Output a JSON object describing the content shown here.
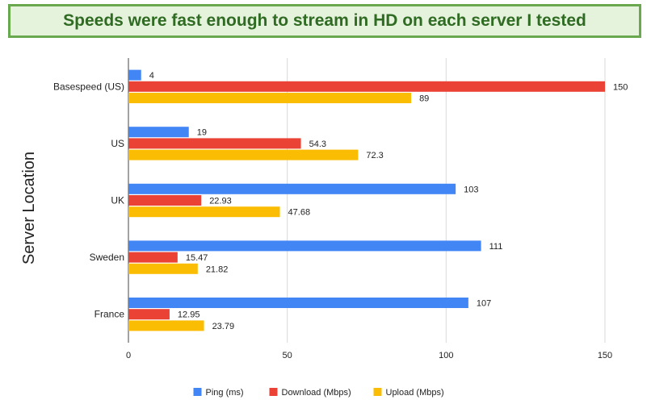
{
  "banner": {
    "title": "Speeds were fast enough to stream in HD on each server I tested"
  },
  "chart_data": {
    "type": "bar",
    "orientation": "horizontal",
    "categories": [
      "Basespeed (US)",
      "US",
      "UK",
      "Sweden",
      "France"
    ],
    "series": [
      {
        "name": "Ping (ms)",
        "color": "#4285f4",
        "values": [
          4,
          19,
          103,
          111,
          107
        ],
        "labels": [
          "4",
          "19",
          "103",
          "111",
          "107"
        ]
      },
      {
        "name": "Download (Mbps)",
        "color": "#ea4335",
        "values": [
          150,
          54.3,
          22.93,
          15.47,
          12.95
        ],
        "labels": [
          "150",
          "54.3",
          "22.93",
          "15.47",
          "12.95"
        ]
      },
      {
        "name": "Upload (Mbps)",
        "color": "#fbbc04",
        "values": [
          89,
          72.3,
          47.68,
          21.82,
          23.79
        ],
        "labels": [
          "89",
          "72.3",
          "47.68",
          "21.82",
          "23.79"
        ]
      }
    ],
    "xlim": [
      0,
      150
    ],
    "xticks": [
      "0",
      "50",
      "100",
      "150"
    ],
    "ylabel": "Server Location",
    "xlabel": "",
    "grid": "vertical",
    "legend_position": "bottom"
  }
}
